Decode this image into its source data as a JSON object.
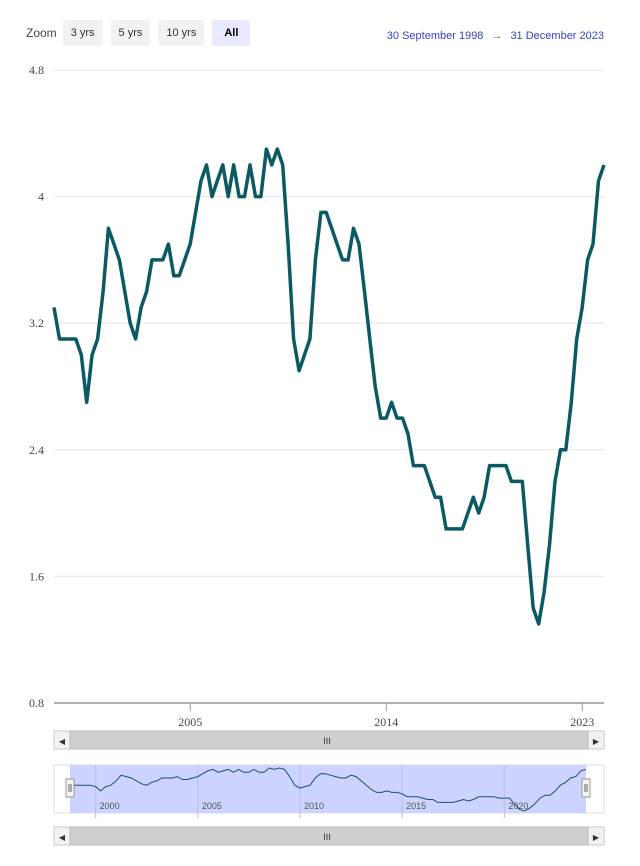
{
  "toolbar": {
    "zoom_label": "Zoom",
    "buttons": [
      "3 yrs",
      "5 yrs",
      "10 yrs",
      "All"
    ],
    "active": "All"
  },
  "range": {
    "from": "30 September 1998",
    "arrow": "→",
    "to": "31 December 2023"
  },
  "colors": {
    "line": "#0b5a63",
    "navigator_fill": "#ccd3ff",
    "navigator_line": "#1d4f6a",
    "range_text": "#3344cc"
  },
  "chart_data": {
    "type": "line",
    "title": "",
    "xlabel": "",
    "ylabel": "",
    "ylim": [
      0.8,
      4.8
    ],
    "yticks": [
      "0.8",
      "1.6",
      "2.4",
      "3.2",
      "4",
      "4.8"
    ],
    "xticks": [
      "2005",
      "2014",
      "2023"
    ],
    "xlim": [
      "1998-09-30",
      "2023-12-31"
    ],
    "grid": true,
    "series": [
      {
        "x": [
          "1998-09-30",
          "1998-12-31",
          "1999-03-31",
          "1999-06-30",
          "1999-09-30",
          "1999-12-31",
          "2000-03-31",
          "2000-06-30",
          "2000-09-30",
          "2000-12-31",
          "2001-03-31",
          "2001-06-30",
          "2001-09-30",
          "2001-12-31",
          "2002-03-31",
          "2002-06-30",
          "2002-09-30",
          "2002-12-31",
          "2003-03-31",
          "2003-06-30",
          "2003-09-30",
          "2003-12-31",
          "2004-03-31",
          "2004-06-30",
          "2004-09-30",
          "2004-12-31",
          "2005-03-31",
          "2005-06-30",
          "2005-09-30",
          "2005-12-31",
          "2006-03-31",
          "2006-06-30",
          "2006-09-30",
          "2006-12-31",
          "2007-03-31",
          "2007-06-30",
          "2007-09-30",
          "2007-12-31",
          "2008-03-31",
          "2008-06-30",
          "2008-09-30",
          "2008-12-31",
          "2009-03-31",
          "2009-06-30",
          "2009-09-30",
          "2009-12-31",
          "2010-03-31",
          "2010-06-30",
          "2010-09-30",
          "2010-12-31",
          "2011-03-31",
          "2011-06-30",
          "2011-09-30",
          "2011-12-31",
          "2012-03-31",
          "2012-06-30",
          "2012-09-30",
          "2012-12-31",
          "2013-03-31",
          "2013-06-30",
          "2013-09-30",
          "2013-12-31",
          "2014-03-31",
          "2014-06-30",
          "2014-09-30",
          "2014-12-31",
          "2015-03-31",
          "2015-06-30",
          "2015-09-30",
          "2015-12-31",
          "2016-03-31",
          "2016-06-30",
          "2016-09-30",
          "2016-12-31",
          "2017-03-31",
          "2017-06-30",
          "2017-09-30",
          "2017-12-31",
          "2018-03-31",
          "2018-06-30",
          "2018-09-30",
          "2018-12-31",
          "2019-03-31",
          "2019-06-30",
          "2019-09-30",
          "2019-12-31",
          "2020-03-31",
          "2020-06-30",
          "2020-09-30",
          "2020-12-31",
          "2021-03-31",
          "2021-06-30",
          "2021-09-30",
          "2021-12-31",
          "2022-03-31",
          "2022-06-30",
          "2022-09-30",
          "2022-12-31",
          "2023-03-31",
          "2023-06-30",
          "2023-09-30",
          "2023-12-31"
        ],
        "y": [
          3.3,
          3.1,
          3.1,
          3.1,
          3.1,
          3.0,
          2.7,
          3.0,
          3.1,
          3.4,
          3.8,
          3.7,
          3.6,
          3.4,
          3.2,
          3.1,
          3.3,
          3.4,
          3.6,
          3.6,
          3.6,
          3.7,
          3.5,
          3.5,
          3.6,
          3.7,
          3.9,
          4.1,
          4.2,
          4.0,
          4.1,
          4.2,
          4.0,
          4.2,
          4.0,
          4.0,
          4.2,
          4.0,
          4.0,
          4.3,
          4.2,
          4.3,
          4.2,
          3.7,
          3.1,
          2.9,
          3.0,
          3.1,
          3.6,
          3.9,
          3.9,
          3.8,
          3.7,
          3.6,
          3.6,
          3.8,
          3.7,
          3.4,
          3.1,
          2.8,
          2.6,
          2.6,
          2.7,
          2.6,
          2.6,
          2.5,
          2.3,
          2.3,
          2.3,
          2.2,
          2.1,
          2.1,
          1.9,
          1.9,
          1.9,
          1.9,
          2.0,
          2.1,
          2.0,
          2.1,
          2.3,
          2.3,
          2.3,
          2.3,
          2.2,
          2.2,
          2.2,
          1.8,
          1.4,
          1.3,
          1.5,
          1.8,
          2.2,
          2.4,
          2.4,
          2.7,
          3.1,
          3.3,
          3.6,
          3.7,
          4.1,
          4.2
        ]
      }
    ]
  },
  "navigator": {
    "ticks": [
      "2000",
      "2005",
      "2010",
      "2015",
      "2020"
    ]
  },
  "scrollbar": {
    "grip": "III",
    "left_arrow": "◀",
    "right_arrow": "▶"
  }
}
